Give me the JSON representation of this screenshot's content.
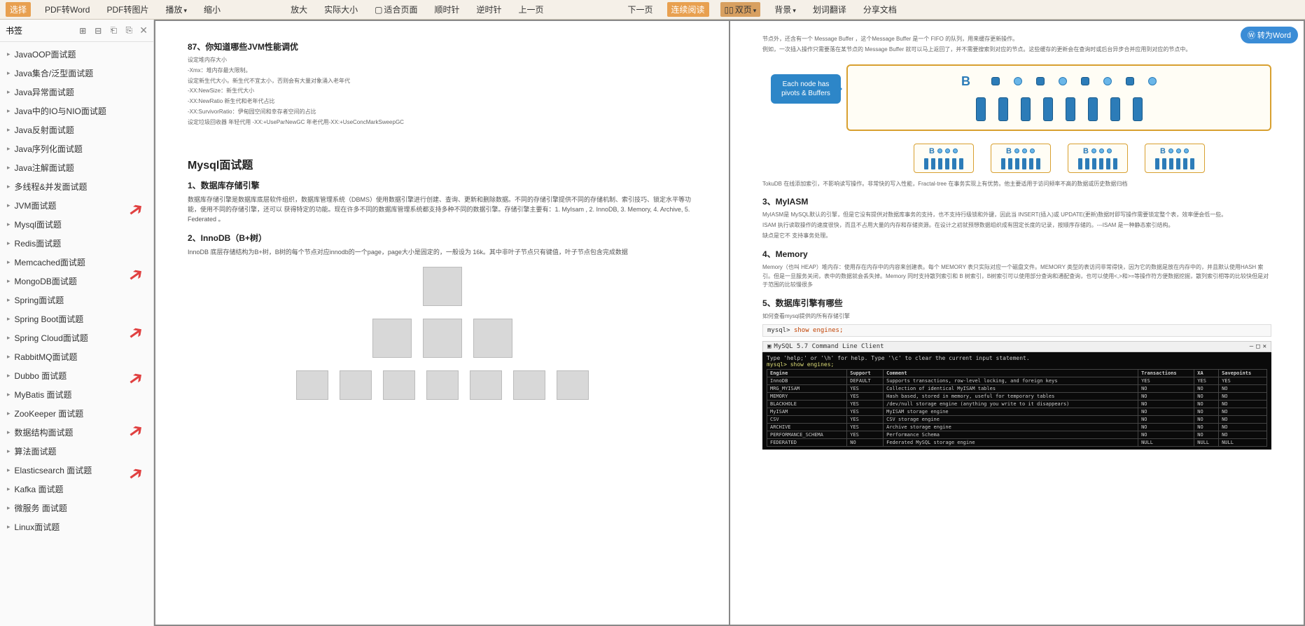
{
  "toolbar": {
    "select": "选择",
    "pdf2word": "PDF转Word",
    "pdf2img": "PDF转图片",
    "play": "播放",
    "shrink": "缩小",
    "enlarge": "放大",
    "actual": "实际大小",
    "fitpage": "适合页面",
    "cw": "顺时针",
    "ccw": "逆时针",
    "prev": "上一页",
    "next": "下一页",
    "continuous": "连续阅读",
    "doublepage": "双页",
    "background": "背景",
    "translate": "划词翻译",
    "share": "分享文档"
  },
  "convert_button": "转为Word",
  "sidebar": {
    "title": "书签",
    "items": [
      "JavaOOP面试题",
      "Java集合/泛型面试题",
      "Java异常面试题",
      "Java中的IO与NIO面试题",
      "Java反射面试题",
      "Java序列化面试题",
      "Java注解面试题",
      "多线程&并发面试题",
      "JVM面试题",
      "Mysql面试题",
      "Redis面试题",
      "Memcached面试题",
      "MongoDB面试题",
      "Spring面试题",
      "Spring Boot面试题",
      "Spring Cloud面试题",
      "RabbitMQ面试题",
      "Dubbo 面试题",
      "MyBatis 面试题",
      "ZooKeeper 面试题",
      "数据结构面试题",
      "算法面试题",
      "Elasticsearch 面试题",
      "Kafka 面试题",
      "微服务 面试题",
      "Linux面试题"
    ]
  },
  "page_left": {
    "h87": "87、你知道哪些JVM性能调优",
    "lines": [
      "设定堆内存大小",
      "-Xmx：堆内存最大限制。",
      "设定新生代大小。新生代不宜太小，否则会有大量对象涌入老年代",
      "-XX:NewSize：新生代大小",
      "-XX:NewRatio 新生代和老年代占比",
      "-XX:SurvivorRatio：伊甸园空间和幸存者空间的占比",
      "设定垃圾回收器 年轻代用 -XX:+UseParNewGC 年老代用-XX:+UseConcMarkSweepGC"
    ],
    "h_mysql": "Mysql面试题",
    "h1": "1、数据库存储引擎",
    "p1": "数据库存储引擎是数据库底层软件组织，数据库管理系统（DBMS）使用数据引擎进行创建、查询、更新和删除数据。不同的存储引擎提供不同的存储机制、索引技巧、锁定水平等功能，使用不同的存储引擎，还可以 获得特定的功能。现在许多不同的数据库管理系统都支持多种不同的数据引擎。存储引擎主要有：1. MyIsam , 2. InnoDB, 3. Memory, 4. Archive, 5. Federated 。",
    "h2": "2、InnoDB（B+树）",
    "p2": "InnoDB 底层存储结构为B+树，B树的每个节点对应innodb的一个page，page大小是固定的，一般设为 16k。其中非叶子节点只有键值，叶子节点包含完成数据",
    "btree": {
      "levels": [
        1,
        3,
        7
      ],
      "node_color": "#d8d8d8",
      "border_color": "#bbbbbb"
    }
  },
  "page_right": {
    "intro_lines": [
      "节点外，还含有一个 Message Buffer ，这个Message Buffer 是一个 FIFO 的队列，用来缓存更新操作。",
      "例如，一次插入操作只需要落在某节点的 Message Buffer 就可以马上返回了，并不需要搜索到对应的节点。这些缓存的更新会在查询时或后台异步合并应用到对应的节点中。"
    ],
    "toku_label": "Each node has pivots & Buffers",
    "toku_root": "B",
    "toku_sub": "B",
    "toku_text": "TokuDB 在线添加索引，不影响读写操作。非常快的写入性能，Fractal-tree 在事务实现上有优势。他主要适用于访问频率不高的数据或历史数据归档",
    "h3": "3、MyIASM",
    "p3a": "MyIASM是 MySQL默认的引擎，但是它没有提供对数据库事务的支持，也不支持行级锁和外键，因此当 INSERT(插入)或 UPDATE(更新)数据时即写操作需要锁定整个表，效率便会低一些。",
    "p3b": "ISAM 执行读取操作的速度很快，而且不占用大量的内存和存储资源。在设计之初就预想数据组织成有固定长度的记录，按顺序存储的。---ISAM 是一种静态索引结构。",
    "p3c": "缺点是它不 支持事务处理。",
    "h4": "4、Memory",
    "p4": "Memory（也叫 HEAP）堆内存：使用存在内存中的内容来创建表。每个 MEMORY 表只实际对应一个磁盘文件。MEMORY 类型的表访问非常得快，因为它的数据是放在内存中的，并且默认使用HASH 索引。但是一旦服务关闭，表中的数据就会丢失掉。Memory 同时支持散列索引和 B 树索引，B树索引可以使用部分查询和通配查询，也可以使用<,>和>=等操作符方便数据挖掘，散列索引相等的比较快但是对于范围的比较慢很多",
    "h5": "5、数据库引擎有哪些",
    "p5": "如何查看mysql提供的所有存储引擎",
    "code": "mysql> show engines;",
    "terminal_title": "MySQL 5.7 Command Line Client",
    "terminal_help": "Type 'help;' or '\\h' for help. Type '\\c' to clear the current input statement.",
    "terminal_cmd": "mysql> show engines;",
    "table": {
      "headers": [
        "Engine",
        "Support",
        "Comment",
        "Transactions",
        "XA",
        "Savepoints"
      ],
      "rows": [
        [
          "InnoDB",
          "DEFAULT",
          "Supports transactions, row-level locking, and foreign keys",
          "YES",
          "YES",
          "YES"
        ],
        [
          "MRG_MYISAM",
          "YES",
          "Collection of identical MyISAM tables",
          "NO",
          "NO",
          "NO"
        ],
        [
          "MEMORY",
          "YES",
          "Hash based, stored in memory, useful for temporary tables",
          "NO",
          "NO",
          "NO"
        ],
        [
          "BLACKHOLE",
          "YES",
          "/dev/null storage engine (anything you write to it disappears)",
          "NO",
          "NO",
          "NO"
        ],
        [
          "MyISAM",
          "YES",
          "MyISAM storage engine",
          "NO",
          "NO",
          "NO"
        ],
        [
          "CSV",
          "YES",
          "CSV storage engine",
          "NO",
          "NO",
          "NO"
        ],
        [
          "ARCHIVE",
          "YES",
          "Archive storage engine",
          "NO",
          "NO",
          "NO"
        ],
        [
          "PERFORMANCE_SCHEMA",
          "YES",
          "Performance Schema",
          "NO",
          "NO",
          "NO"
        ],
        [
          "FEDERATED",
          "NO",
          "Federated MySQL storage engine",
          "NULL",
          "NULL",
          "NULL"
        ]
      ]
    }
  },
  "style": {
    "toolbar_bg": "#f5f0e8",
    "active_bg": "#e8a050",
    "convert_bg": "#3a8cd6",
    "toku_border": "#d8a030",
    "toku_blue": "#2c7cb8"
  }
}
